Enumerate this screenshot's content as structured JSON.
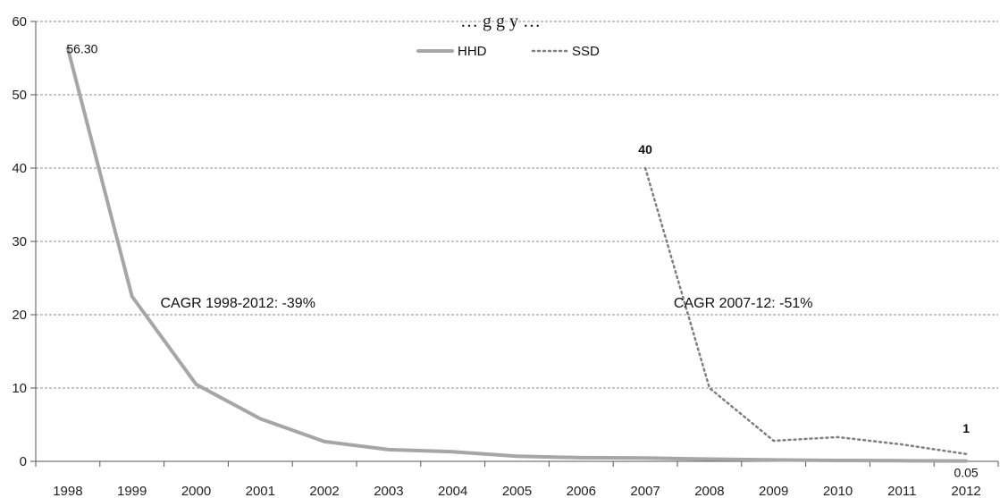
{
  "title_fragment": "… g g y …",
  "chart_data": {
    "type": "line",
    "categories": [
      "1998",
      "1999",
      "2000",
      "2001",
      "2002",
      "2003",
      "2004",
      "2005",
      "2006",
      "2007",
      "2008",
      "2009",
      "2010",
      "2011",
      "2012"
    ],
    "ylim": [
      0,
      60
    ],
    "yticks": [
      0,
      10,
      20,
      30,
      40,
      50,
      60
    ],
    "grid": true,
    "legend_position": "top-center",
    "series": [
      {
        "name": "HHD",
        "style": "solid",
        "color": "#a6a6a6",
        "values": [
          56.3,
          22.5,
          10.5,
          5.8,
          2.7,
          1.6,
          1.3,
          0.7,
          0.5,
          0.45,
          0.3,
          0.2,
          0.12,
          0.08,
          0.05
        ]
      },
      {
        "name": "SSD",
        "style": "dotted",
        "color": "#7f7f7f",
        "values": [
          null,
          null,
          null,
          null,
          null,
          null,
          null,
          null,
          null,
          40,
          10,
          2.8,
          3.3,
          2.3,
          1
        ]
      }
    ],
    "data_labels": [
      {
        "series": "HHD",
        "category": "1998",
        "text": "56.30"
      },
      {
        "series": "SSD",
        "category": "2007",
        "text": "40"
      },
      {
        "series": "SSD",
        "category": "2012",
        "text": "1"
      },
      {
        "series": "HHD",
        "category": "2012",
        "text": "0.05"
      }
    ],
    "annotations": [
      {
        "text": "CAGR 1998-2012:  -39%",
        "x": "2000",
        "y": 20
      },
      {
        "text": "CAGR 2007-12:  -51%",
        "x": "2008",
        "y": 20
      }
    ]
  }
}
